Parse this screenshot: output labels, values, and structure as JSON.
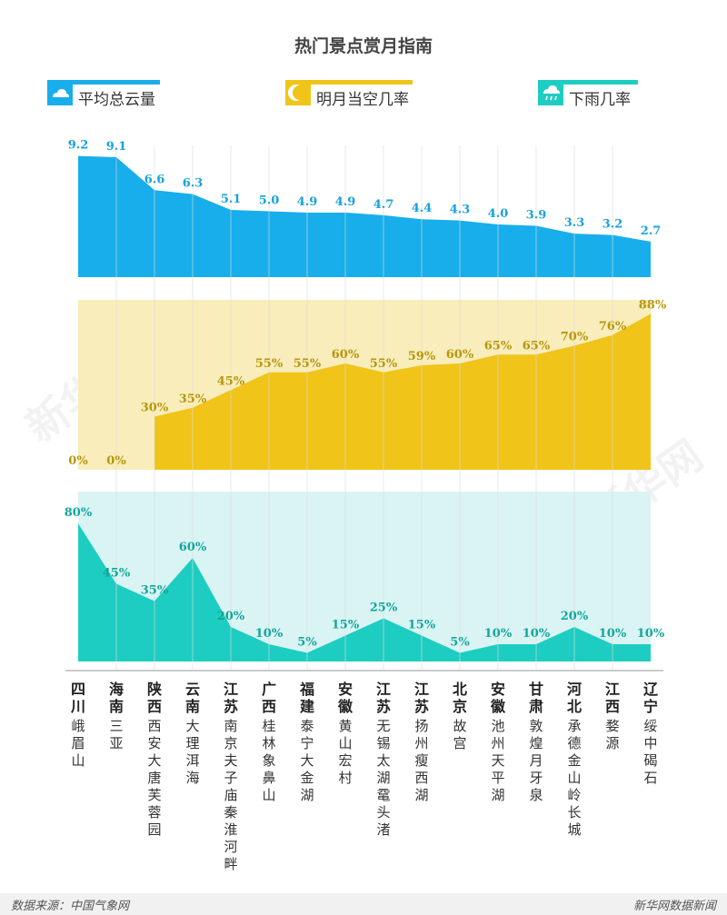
{
  "title": "热门景点赏月指南",
  "legend": [
    {
      "label": "平均总云量",
      "color": "#18aeeb",
      "icon": "cloud-icon"
    },
    {
      "label": "明月当空几率",
      "color": "#f0c419",
      "icon": "moon-icon"
    },
    {
      "label": "下雨几率",
      "color": "#1ecdc1",
      "icon": "rain-icon"
    }
  ],
  "watermark": "新华网",
  "footer": {
    "source": "数据来源：中国气象网",
    "brand": "新华网数据新闻"
  },
  "colors": {
    "blue": "#18aeeb",
    "yellow": "#f0c419",
    "yellow_bg": "#f8edbb",
    "teal": "#1ecdc1",
    "teal_bg": "#d9f4f3",
    "label_gold": "#b8960c",
    "label_teal": "#12a69b",
    "label_blue": "#17a2dc",
    "grid": "#dcdcdc"
  },
  "chart_data": {
    "type": "area",
    "title": "热门景点赏月指南",
    "categories": [
      {
        "province": "四川",
        "place": "峨眉山"
      },
      {
        "province": "海南",
        "place": "三亚"
      },
      {
        "province": "陕西",
        "place": "西安大唐芙蓉园"
      },
      {
        "province": "云南",
        "place": "大理洱海"
      },
      {
        "province": "江苏",
        "place": "南京夫子庙秦淮河畔"
      },
      {
        "province": "广西",
        "place": "桂林象鼻山"
      },
      {
        "province": "福建",
        "place": "泰宁大金湖"
      },
      {
        "province": "安徽",
        "place": "黄山宏村"
      },
      {
        "province": "江苏",
        "place": "无锡太湖鼋头渚"
      },
      {
        "province": "江苏",
        "place": "扬州瘦西湖"
      },
      {
        "province": "北京",
        "place": "故宫"
      },
      {
        "province": "安徽",
        "place": "池州天平湖"
      },
      {
        "province": "甘肃",
        "place": "敦煌月牙泉"
      },
      {
        "province": "河北",
        "place": "承德金山岭长城"
      },
      {
        "province": "江西",
        "place": "婺源"
      },
      {
        "province": "辽宁",
        "place": "绥中碣石"
      }
    ],
    "series": [
      {
        "name": "平均总云量",
        "values": [
          9.2,
          9.1,
          6.6,
          6.3,
          5.1,
          5.0,
          4.9,
          4.9,
          4.7,
          4.4,
          4.3,
          4.0,
          3.9,
          3.3,
          3.2,
          2.7
        ],
        "labels": [
          "9.2",
          "9.1",
          "6.6",
          "6.3",
          "5.1",
          "5.0",
          "4.9",
          "4.9",
          "4.7",
          "4.4",
          "4.3",
          "4.0",
          "3.9",
          "3.3",
          "3.2",
          "2.7"
        ]
      },
      {
        "name": "明月当空几率",
        "values": [
          0,
          0,
          30,
          35,
          45,
          55,
          55,
          60,
          55,
          59,
          60,
          65,
          65,
          70,
          76,
          88
        ],
        "labels": [
          "0%",
          "0%",
          "30%",
          "35%",
          "45%",
          "55%",
          "55%",
          "60%",
          "55%",
          "59%",
          "60%",
          "65%",
          "65%",
          "70%",
          "76%",
          "88%"
        ]
      },
      {
        "name": "下雨几率",
        "values": [
          80,
          45,
          35,
          60,
          20,
          10,
          5,
          15,
          25,
          15,
          5,
          10,
          10,
          20,
          10,
          10
        ],
        "labels": [
          "80%",
          "45%",
          "35%",
          "60%",
          "20%",
          "10%",
          "5%",
          "15%",
          "25%",
          "15%",
          "5%",
          "10%",
          "10%",
          "20%",
          "10%",
          "10%"
        ]
      }
    ]
  }
}
